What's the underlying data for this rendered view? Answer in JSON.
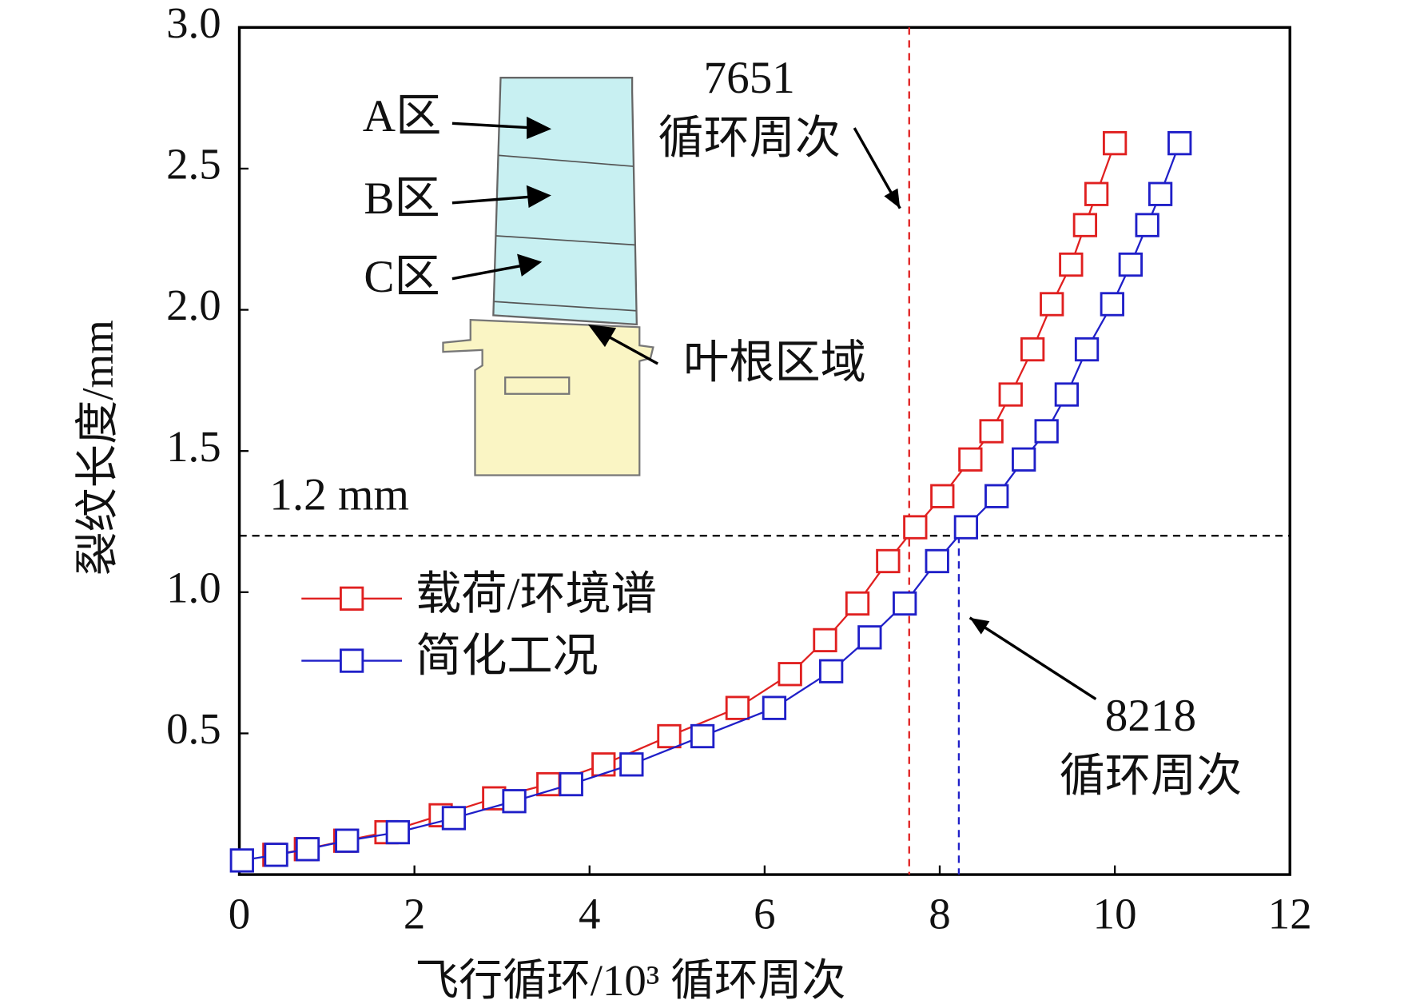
{
  "chart_data": {
    "type": "line",
    "x_label": "飞行循环/10³ 循环周次",
    "y_label": "裂纹长度/mm",
    "xlim": [
      0,
      12
    ],
    "xticks": [
      0,
      2,
      4,
      6,
      8,
      10,
      12
    ],
    "ylim": [
      0,
      3
    ],
    "yticks": [
      0.5,
      1.0,
      1.5,
      2.0,
      2.5,
      3.0
    ],
    "series": [
      {
        "name": "载荷/环境谱",
        "color": "#e02020",
        "x": [
          0.4,
          0.76,
          1.21,
          1.68,
          2.3,
          2.91,
          3.53,
          4.16,
          4.91,
          5.69,
          6.29,
          6.69,
          7.06,
          7.41,
          7.72,
          8.03,
          8.35,
          8.59,
          8.81,
          9.06,
          9.28,
          9.5,
          9.66,
          9.79,
          10.0
        ],
        "values": [
          0.07,
          0.09,
          0.12,
          0.15,
          0.21,
          0.27,
          0.32,
          0.39,
          0.49,
          0.59,
          0.71,
          0.83,
          0.96,
          1.11,
          1.23,
          1.34,
          1.47,
          1.57,
          1.7,
          1.86,
          2.02,
          2.16,
          2.3,
          2.41,
          2.59
        ]
      },
      {
        "name": "简化工况",
        "color": "#1f1fc8",
        "x": [
          0.03,
          0.42,
          0.78,
          1.23,
          1.81,
          2.45,
          3.14,
          3.79,
          4.48,
          5.29,
          6.11,
          6.76,
          7.2,
          7.6,
          7.97,
          8.3,
          8.65,
          8.96,
          9.22,
          9.45,
          9.68,
          9.97,
          10.18,
          10.37,
          10.52,
          10.74
        ],
        "values": [
          0.05,
          0.07,
          0.09,
          0.12,
          0.15,
          0.2,
          0.26,
          0.32,
          0.39,
          0.49,
          0.59,
          0.72,
          0.84,
          0.96,
          1.11,
          1.23,
          1.34,
          1.47,
          1.57,
          1.7,
          1.86,
          2.02,
          2.16,
          2.3,
          2.41,
          2.59
        ]
      }
    ],
    "vlines": [
      {
        "value": 7.651,
        "label": "7651",
        "note": "循环周次",
        "color": "#e02020"
      },
      {
        "value": 8.218,
        "label": "8218",
        "note": "循环周次",
        "color": "#1f1fc8"
      }
    ],
    "hline": {
      "value": 1.2,
      "label": "1.2 mm",
      "color": "#000000"
    },
    "inset_labels": [
      "A区",
      "B区",
      "C区",
      "叶根区域"
    ]
  }
}
